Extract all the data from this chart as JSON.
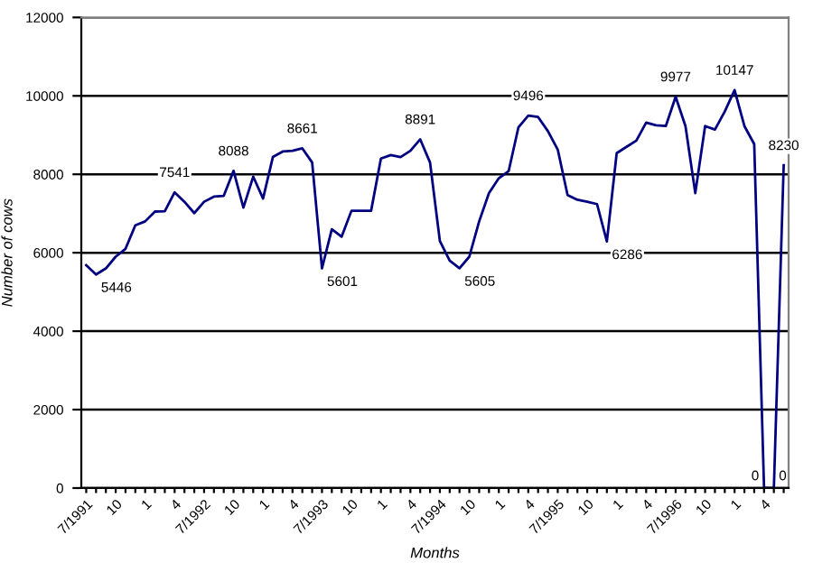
{
  "chart_data": {
    "type": "line",
    "xlabel": "Months",
    "ylabel": "Number of cows",
    "categories": [
      "7/1991",
      null,
      null,
      "10",
      null,
      null,
      "1",
      null,
      null,
      "4",
      null,
      null,
      "7/1992",
      null,
      null,
      "10",
      null,
      null,
      "1",
      null,
      null,
      "4",
      null,
      null,
      "7/1993",
      null,
      null,
      "10",
      null,
      null,
      "1",
      null,
      null,
      "4",
      null,
      null,
      "7/1994",
      null,
      null,
      "10",
      null,
      null,
      "1",
      null,
      null,
      "4",
      null,
      null,
      "7/1995",
      null,
      null,
      "10",
      null,
      null,
      "1",
      null,
      null,
      "4",
      null,
      null,
      "7/1996",
      null,
      null,
      "10",
      null,
      null,
      "1",
      null,
      null,
      "4",
      null,
      null
    ],
    "series": [
      {
        "color": "#000080",
        "values": [
          5680,
          5446,
          5600,
          5900,
          6100,
          6700,
          6800,
          7050,
          7060,
          7541,
          7300,
          7010,
          7300,
          7430,
          7450,
          8088,
          7150,
          7940,
          7380,
          8440,
          8580,
          8600,
          8661,
          8300,
          5601,
          6600,
          6410,
          7070,
          7070,
          7070,
          8400,
          8490,
          8440,
          8600,
          8891,
          8300,
          6300,
          5800,
          5605,
          5900,
          6800,
          7520,
          7900,
          8080,
          9200,
          9496,
          9460,
          9100,
          8630,
          7470,
          7350,
          7300,
          7240,
          6286,
          8540,
          8700,
          8860,
          9320,
          9250,
          9230,
          9977,
          9230,
          7520,
          9230,
          9140,
          9600,
          10147,
          9230,
          8770,
          0,
          0,
          8230
        ],
        "value_labels": [
          null,
          "5446",
          null,
          null,
          null,
          null,
          null,
          null,
          null,
          "7541",
          null,
          null,
          null,
          null,
          null,
          "8088",
          null,
          null,
          null,
          null,
          null,
          null,
          "8661",
          null,
          "5601",
          null,
          null,
          null,
          null,
          null,
          null,
          null,
          null,
          null,
          "8891",
          null,
          null,
          null,
          "5605",
          null,
          null,
          null,
          null,
          null,
          null,
          "9496",
          null,
          null,
          null,
          null,
          null,
          null,
          null,
          "6286",
          null,
          null,
          null,
          null,
          null,
          null,
          "9977",
          null,
          null,
          null,
          null,
          null,
          "10147",
          null,
          null,
          "0",
          "0",
          "8230"
        ]
      }
    ],
    "ylim": [
      0,
      12000
    ],
    "yticks": [
      0,
      2000,
      4000,
      6000,
      8000,
      10000,
      12000
    ],
    "grid": "y",
    "legend": false,
    "marker": "none",
    "line_style": "solid"
  }
}
